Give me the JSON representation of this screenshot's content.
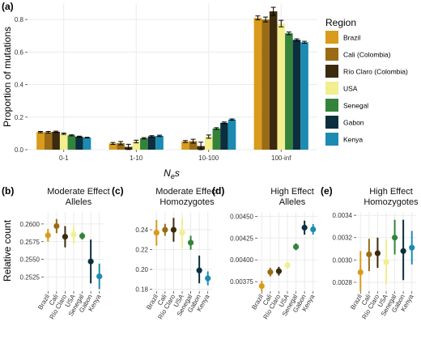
{
  "figure": {
    "panel_a_label": "(a)",
    "x_axis_label_main": "N",
    "x_axis_label_sub": "e",
    "x_axis_label_tail": "s",
    "y_axis_label_top": "Proportion of mutations",
    "y_axis_label_bottom": "Relative count",
    "legend_title": "Region"
  },
  "colors": {
    "Brazil": "#d99b1c",
    "Cali (Colombia)": "#9a6b14",
    "Río Claro (Colombia)": "#3c2a0d",
    "USA": "#f3ee8f",
    "Senegal": "#33843a",
    "Gabon": "#0b2f3d",
    "Kenya": "#1c8bb1"
  },
  "chart_data": [
    {
      "type": "bar",
      "panel": "(a)",
      "categories": [
        "0-1",
        "1-10",
        "10-100",
        "100-inf"
      ],
      "ylabel": "Proportion of mutations",
      "ylim": [
        0,
        0.9
      ],
      "yticks": [
        "0.0",
        "0.2",
        "0.4",
        "0.6",
        "0.8"
      ],
      "grid": true,
      "legend": "right",
      "series": [
        {
          "name": "Brazil",
          "values": [
            0.108,
            0.038,
            0.05,
            0.81
          ],
          "err": [
            0.004,
            0.006,
            0.006,
            0.012
          ]
        },
        {
          "name": "Cali (Colombia)",
          "values": [
            0.107,
            0.04,
            0.052,
            0.8
          ],
          "err": [
            0.005,
            0.01,
            0.012,
            0.015
          ]
        },
        {
          "name": "Río Claro (Colombia)",
          "values": [
            0.11,
            0.017,
            0.022,
            0.85
          ],
          "err": [
            0.004,
            0.016,
            0.024,
            0.025
          ]
        },
        {
          "name": "USA",
          "values": [
            0.098,
            0.05,
            0.08,
            0.775
          ],
          "err": [
            0.004,
            0.008,
            0.01,
            0.02
          ]
        },
        {
          "name": "Senegal",
          "values": [
            0.088,
            0.07,
            0.13,
            0.715
          ],
          "err": [
            0.003,
            0.004,
            0.005,
            0.008
          ]
        },
        {
          "name": "Gabon",
          "values": [
            0.08,
            0.082,
            0.165,
            0.675
          ],
          "err": [
            0.003,
            0.004,
            0.005,
            0.006
          ]
        },
        {
          "name": "Kenya",
          "values": [
            0.074,
            0.085,
            0.185,
            0.66
          ],
          "err": [
            0.002,
            0.004,
            0.004,
            0.006
          ]
        }
      ]
    },
    {
      "type": "scatter",
      "panel": "(b)",
      "title_line1": "Moderate Effect",
      "title_line2": "Alleles",
      "categories": [
        "Brazil",
        "Cali",
        "Río Claro",
        "USA",
        "Senegal",
        "Gabon",
        "Kenya"
      ],
      "ylim": [
        0.2505,
        0.2617
      ],
      "yticks": [
        "0.2525",
        "0.2550",
        "0.2575",
        "0.2600"
      ],
      "ytick_values": [
        0.2525,
        0.255,
        0.2575,
        0.26
      ],
      "values": [
        0.2584,
        0.2597,
        0.2582,
        0.2585,
        0.2583,
        0.2547,
        0.2526
      ],
      "lower": [
        0.2575,
        0.2587,
        0.2567,
        0.2572,
        0.2578,
        0.2516,
        0.2508
      ],
      "upper": [
        0.2593,
        0.2607,
        0.2597,
        0.2598,
        0.2588,
        0.2578,
        0.2544
      ]
    },
    {
      "type": "scatter",
      "panel": "(c)",
      "title_line1": "Moderate Effect",
      "title_line2": "Homozygotes",
      "categories": [
        "Brazil",
        "Cali",
        "Río Claro",
        "USA",
        "Senegal",
        "Gabon",
        "Kenya"
      ],
      "ylim": [
        0.178,
        0.258
      ],
      "yticks": [
        "0.18",
        "0.20",
        "0.22",
        "0.24"
      ],
      "ytick_values": [
        0.18,
        0.2,
        0.22,
        0.24
      ],
      "values": [
        0.237,
        0.24,
        0.24,
        0.237,
        0.227,
        0.199,
        0.191
      ],
      "lower": [
        0.224,
        0.234,
        0.228,
        0.222,
        0.22,
        0.186,
        0.184
      ],
      "upper": [
        0.25,
        0.246,
        0.252,
        0.252,
        0.234,
        0.214,
        0.198
      ]
    },
    {
      "type": "scatter",
      "panel": "(d)",
      "title_line1": "High Effect",
      "title_line2": "Alleles",
      "categories": [
        "Brazil",
        "Cali",
        "Río Claro",
        "USA",
        "Senegal",
        "Gabon",
        "Kenya"
      ],
      "ylim": [
        0.00364,
        0.00455
      ],
      "yticks": [
        "0.00375",
        "0.00400",
        "0.00425",
        "0.00450"
      ],
      "ytick_values": [
        0.00375,
        0.004,
        0.00425,
        0.0045
      ],
      "values": [
        0.0037,
        0.00386,
        0.00387,
        0.00394,
        0.00415,
        0.00437,
        0.00435
      ],
      "lower": [
        0.00364,
        0.00381,
        0.00382,
        0.0039,
        0.00411,
        0.00429,
        0.00429
      ],
      "upper": [
        0.00376,
        0.00391,
        0.00392,
        0.00398,
        0.00419,
        0.00445,
        0.00441
      ]
    },
    {
      "type": "scatter",
      "panel": "(e)",
      "title_line1": "High Effect",
      "title_line2": "Homozygotes",
      "categories": [
        "Brazil",
        "Cali",
        "Río Claro",
        "USA",
        "Senegal",
        "Gabon",
        "Kenya"
      ],
      "ylim": [
        0.00272,
        0.00343
      ],
      "yticks": [
        "0.0028",
        "0.0030",
        "0.0032",
        "0.0034"
      ],
      "ytick_values": [
        0.0028,
        0.003,
        0.0032,
        0.0034
      ],
      "values": [
        0.00289,
        0.00305,
        0.00306,
        0.00298,
        0.0032,
        0.00308,
        0.00311
      ],
      "lower": [
        0.00272,
        0.0029,
        0.00293,
        0.00278,
        0.00305,
        0.00282,
        0.00296
      ],
      "upper": [
        0.00308,
        0.00319,
        0.0032,
        0.00318,
        0.00336,
        0.00336,
        0.00326
      ]
    }
  ]
}
